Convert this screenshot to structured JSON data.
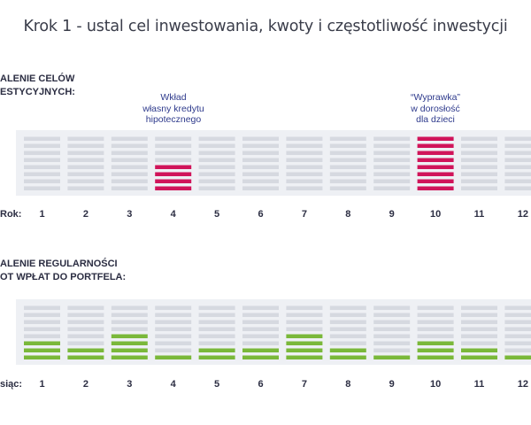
{
  "title": "Krok 1 - ustal cel inwestowania, kwoty i częstotliwość inwestycji",
  "colors": {
    "background_band": "#eef0f4",
    "bar_empty": "#d6d9e0",
    "goal_bar": "#d0145a",
    "payment_bar": "#7ab83a",
    "annotation_text": "#2e3a8c"
  },
  "chart_data": [
    {
      "type": "bar",
      "section_label": [
        "ALENIE CELÓW",
        "ESTYCYJNYCH:"
      ],
      "axis_label": "Rok:",
      "categories": [
        "1",
        "2",
        "3",
        "4",
        "5",
        "6",
        "7",
        "8",
        "9",
        "10",
        "11",
        "12"
      ],
      "slots_per_column": 8,
      "values": [
        0,
        0,
        0,
        4,
        0,
        0,
        0,
        0,
        0,
        8,
        0,
        0
      ],
      "annotations": [
        {
          "category": "4",
          "lines": [
            "Wkład",
            "własny kredytu",
            "hipotecznego"
          ]
        },
        {
          "category": "10",
          "lines": [
            "“Wyprawka”",
            "w dorosłość",
            "dla dzieci"
          ]
        }
      ]
    },
    {
      "type": "bar",
      "section_label": [
        "ALENIE REGULARNOŚCI",
        "OT WPŁAT DO PORTFELA:"
      ],
      "axis_label": "siąc:",
      "categories": [
        "1",
        "2",
        "3",
        "4",
        "5",
        "6",
        "7",
        "8",
        "9",
        "10",
        "11",
        "12"
      ],
      "slots_per_column": 8,
      "values": [
        3,
        2,
        4,
        1,
        2,
        2,
        4,
        2,
        1,
        3,
        2,
        1
      ]
    }
  ]
}
